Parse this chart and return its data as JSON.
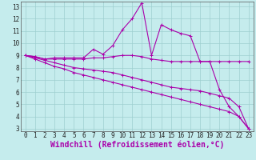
{
  "xlabel": "Windchill (Refroidissement éolien,°C)",
  "xlim": [
    -0.5,
    23.5
  ],
  "ylim": [
    2.8,
    13.4
  ],
  "xticks": [
    0,
    1,
    2,
    3,
    4,
    5,
    6,
    7,
    8,
    9,
    10,
    11,
    12,
    13,
    14,
    15,
    16,
    17,
    18,
    19,
    20,
    21,
    22,
    23
  ],
  "yticks": [
    3,
    4,
    5,
    6,
    7,
    8,
    9,
    10,
    11,
    12,
    13
  ],
  "background_color": "#c5eced",
  "grid_color": "#9dcfcf",
  "line_color": "#aa00aa",
  "series": [
    [
      9.0,
      8.9,
      8.7,
      8.8,
      8.8,
      8.8,
      8.8,
      9.5,
      9.1,
      9.8,
      11.1,
      12.0,
      13.3,
      9.0,
      11.5,
      11.1,
      10.8,
      10.6,
      8.5,
      8.5,
      6.2,
      4.8,
      4.0,
      3.0
    ],
    [
      9.0,
      8.9,
      8.7,
      8.7,
      8.7,
      8.7,
      8.7,
      8.8,
      8.8,
      8.9,
      9.0,
      9.0,
      8.9,
      8.7,
      8.6,
      8.5,
      8.5,
      8.5,
      8.5,
      8.5,
      8.5,
      8.5,
      8.5,
      8.5
    ],
    [
      9.0,
      8.8,
      8.6,
      8.4,
      8.2,
      8.0,
      7.9,
      7.8,
      7.7,
      7.6,
      7.4,
      7.2,
      7.0,
      6.8,
      6.6,
      6.4,
      6.3,
      6.2,
      6.1,
      5.9,
      5.7,
      5.5,
      4.8,
      3.0
    ],
    [
      9.0,
      8.7,
      8.4,
      8.1,
      7.9,
      7.6,
      7.4,
      7.2,
      7.0,
      6.8,
      6.6,
      6.4,
      6.2,
      6.0,
      5.8,
      5.6,
      5.4,
      5.2,
      5.0,
      4.8,
      4.6,
      4.4,
      4.0,
      3.0
    ]
  ],
  "tick_fontsize": 5.5,
  "xlabel_fontsize": 7.0,
  "marker": "+"
}
